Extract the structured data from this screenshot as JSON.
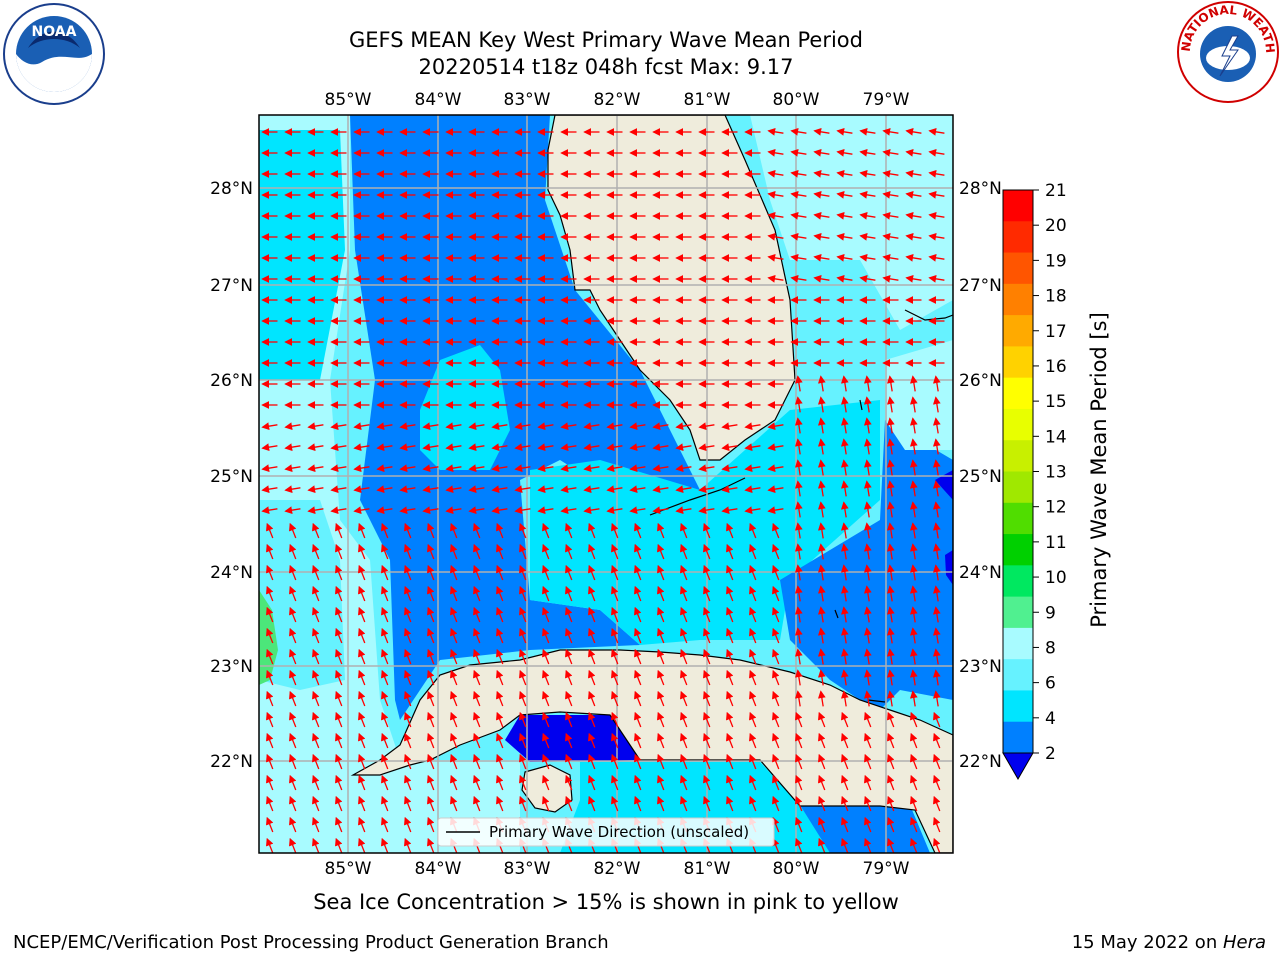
{
  "title": {
    "line1": "GEFS MEAN Key West Primary Wave Mean Period",
    "line2": "20220514 t18z 048h fcst   Max: 9.17"
  },
  "map": {
    "lon_labels": [
      "85°W",
      "84°W",
      "83°W",
      "82°W",
      "81°W",
      "80°W",
      "79°W"
    ],
    "lat_labels": [
      "28°N",
      "27°N",
      "26°N",
      "25°N",
      "24°N",
      "23°N",
      "22°N"
    ],
    "legend_label": "Primary Wave Direction (unscaled)",
    "arrow_color": "#ff0000",
    "land_color": "#efecdc",
    "ocean_colors": {
      "2-4": "#0080ff",
      "4-6": "#00e5ff",
      "6-8": "#66f2ff",
      "8-9": "#a8fbff",
      "9-10": "#4ce67a"
    },
    "deep_blue": "#0000ee"
  },
  "colorbar": {
    "label": "Primary Wave Mean Period [s]",
    "ticks": [
      "21",
      "20",
      "19",
      "18",
      "17",
      "16",
      "15",
      "14",
      "13",
      "12",
      "11",
      "10",
      "9",
      "8",
      "6",
      "4",
      "2"
    ],
    "colors": [
      "#ff0000",
      "#ff2a00",
      "#ff5500",
      "#ff8000",
      "#ffaa00",
      "#ffd200",
      "#ffff00",
      "#e8ff00",
      "#c8f000",
      "#a0e800",
      "#50dd00",
      "#00d000",
      "#00e860",
      "#50f090",
      "#a8fbff",
      "#66f2ff",
      "#00e5ff",
      "#0080ff"
    ],
    "underflow_color": "#0000ee"
  },
  "note": "Sea Ice Concentration > 15% is shown in pink to yellow",
  "footer": {
    "left": "NCEP/EMC/Verification Post Processing Product Generation Branch",
    "right_prefix": "15 May 2022 on ",
    "right_host": "Hera"
  },
  "logos": {
    "noaa_text": "NOAA",
    "nws_text": "NATIONAL WEATHER SERVICE"
  }
}
